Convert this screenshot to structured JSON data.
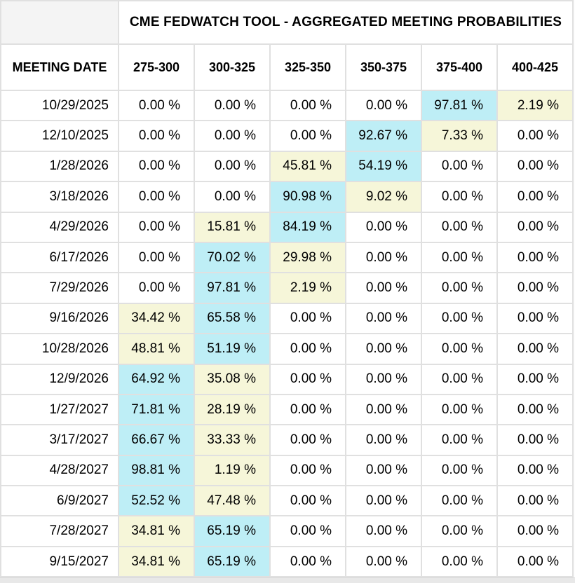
{
  "table": {
    "title": "CME FEDWATCH TOOL - AGGREGATED MEETING PROBABILITIES",
    "date_header": "MEETING DATE",
    "rate_headers": [
      "275-300",
      "300-325",
      "325-350",
      "350-375",
      "375-400",
      "400-425"
    ],
    "colors": {
      "highlight_cyan": "#beeef6",
      "highlight_yellow": "#f6f6d9",
      "border": "#e0e0e0",
      "corner_background": "#f4f4f4"
    },
    "rows": [
      {
        "date": "10/29/2025",
        "values": [
          "0.00 %",
          "0.00 %",
          "0.00 %",
          "0.00 %",
          "97.81 %",
          "2.19 %"
        ],
        "highlights": [
          "",
          "",
          "",
          "",
          "c",
          "y"
        ]
      },
      {
        "date": "12/10/2025",
        "values": [
          "0.00 %",
          "0.00 %",
          "0.00 %",
          "92.67 %",
          "7.33 %",
          "0.00 %"
        ],
        "highlights": [
          "",
          "",
          "",
          "c",
          "y",
          ""
        ]
      },
      {
        "date": "1/28/2026",
        "values": [
          "0.00 %",
          "0.00 %",
          "45.81 %",
          "54.19 %",
          "0.00 %",
          "0.00 %"
        ],
        "highlights": [
          "",
          "",
          "y",
          "c",
          "",
          ""
        ]
      },
      {
        "date": "3/18/2026",
        "values": [
          "0.00 %",
          "0.00 %",
          "90.98 %",
          "9.02 %",
          "0.00 %",
          "0.00 %"
        ],
        "highlights": [
          "",
          "",
          "c",
          "y",
          "",
          ""
        ]
      },
      {
        "date": "4/29/2026",
        "values": [
          "0.00 %",
          "15.81 %",
          "84.19 %",
          "0.00 %",
          "0.00 %",
          "0.00 %"
        ],
        "highlights": [
          "",
          "y",
          "c",
          "",
          "",
          ""
        ]
      },
      {
        "date": "6/17/2026",
        "values": [
          "0.00 %",
          "70.02 %",
          "29.98 %",
          "0.00 %",
          "0.00 %",
          "0.00 %"
        ],
        "highlights": [
          "",
          "c",
          "y",
          "",
          "",
          ""
        ]
      },
      {
        "date": "7/29/2026",
        "values": [
          "0.00 %",
          "97.81 %",
          "2.19 %",
          "0.00 %",
          "0.00 %",
          "0.00 %"
        ],
        "highlights": [
          "",
          "c",
          "y",
          "",
          "",
          ""
        ]
      },
      {
        "date": "9/16/2026",
        "values": [
          "34.42 %",
          "65.58 %",
          "0.00 %",
          "0.00 %",
          "0.00 %",
          "0.00 %"
        ],
        "highlights": [
          "y",
          "c",
          "",
          "",
          "",
          ""
        ]
      },
      {
        "date": "10/28/2026",
        "values": [
          "48.81 %",
          "51.19 %",
          "0.00 %",
          "0.00 %",
          "0.00 %",
          "0.00 %"
        ],
        "highlights": [
          "y",
          "c",
          "",
          "",
          "",
          ""
        ]
      },
      {
        "date": "12/9/2026",
        "values": [
          "64.92 %",
          "35.08 %",
          "0.00 %",
          "0.00 %",
          "0.00 %",
          "0.00 %"
        ],
        "highlights": [
          "c",
          "y",
          "",
          "",
          "",
          ""
        ]
      },
      {
        "date": "1/27/2027",
        "values": [
          "71.81 %",
          "28.19 %",
          "0.00 %",
          "0.00 %",
          "0.00 %",
          "0.00 %"
        ],
        "highlights": [
          "c",
          "y",
          "",
          "",
          "",
          ""
        ]
      },
      {
        "date": "3/17/2027",
        "values": [
          "66.67 %",
          "33.33 %",
          "0.00 %",
          "0.00 %",
          "0.00 %",
          "0.00 %"
        ],
        "highlights": [
          "c",
          "y",
          "",
          "",
          "",
          ""
        ]
      },
      {
        "date": "4/28/2027",
        "values": [
          "98.81 %",
          "1.19 %",
          "0.00 %",
          "0.00 %",
          "0.00 %",
          "0.00 %"
        ],
        "highlights": [
          "c",
          "y",
          "",
          "",
          "",
          ""
        ]
      },
      {
        "date": "6/9/2027",
        "values": [
          "52.52 %",
          "47.48 %",
          "0.00 %",
          "0.00 %",
          "0.00 %",
          "0.00 %"
        ],
        "highlights": [
          "c",
          "y",
          "",
          "",
          "",
          ""
        ]
      },
      {
        "date": "7/28/2027",
        "values": [
          "34.81 %",
          "65.19 %",
          "0.00 %",
          "0.00 %",
          "0.00 %",
          "0.00 %"
        ],
        "highlights": [
          "y",
          "c",
          "",
          "",
          "",
          ""
        ]
      },
      {
        "date": "9/15/2027",
        "values": [
          "34.81 %",
          "65.19 %",
          "0.00 %",
          "0.00 %",
          "0.00 %",
          "0.00 %"
        ],
        "highlights": [
          "y",
          "c",
          "",
          "",
          "",
          ""
        ]
      }
    ]
  }
}
